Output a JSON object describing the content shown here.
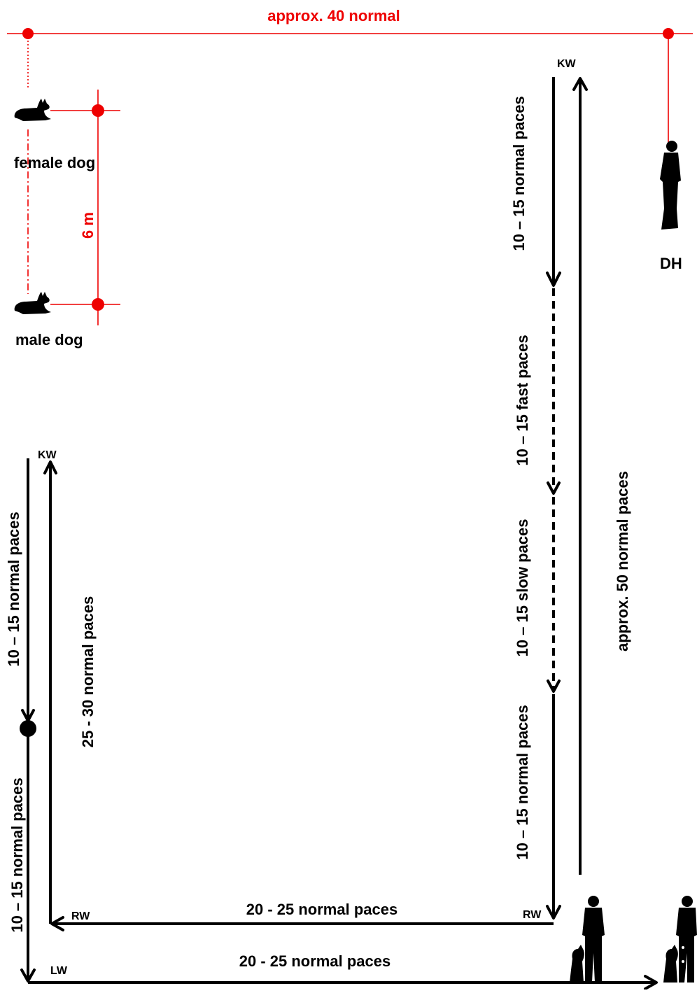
{
  "diagram": {
    "top_measure_label": "approx. 40 normal",
    "distance_label": "6 m",
    "dogs": {
      "female_label": "female dog",
      "male_label": "male dog"
    },
    "handler_label": "DH",
    "markers": {
      "kw": "KW",
      "rw": "RW",
      "lw": "LW"
    },
    "right_course": {
      "seg1": "10 – 15 normal paces",
      "seg2": "10 – 15 fast paces",
      "seg3": "10 – 15 slow paces",
      "seg4": "10 – 15 normal paces",
      "return": "approx. 50 normal paces"
    },
    "left_course": {
      "seg1": "10 – 15 normal paces",
      "seg2": "10 – 15 normal paces",
      "return": "25 - 30 normal paces"
    },
    "bottom": {
      "upper": "20 - 25 normal paces",
      "lower": "20 - 25 normal paces"
    },
    "colors": {
      "measure": "#ee0000",
      "path": "#000000"
    }
  }
}
